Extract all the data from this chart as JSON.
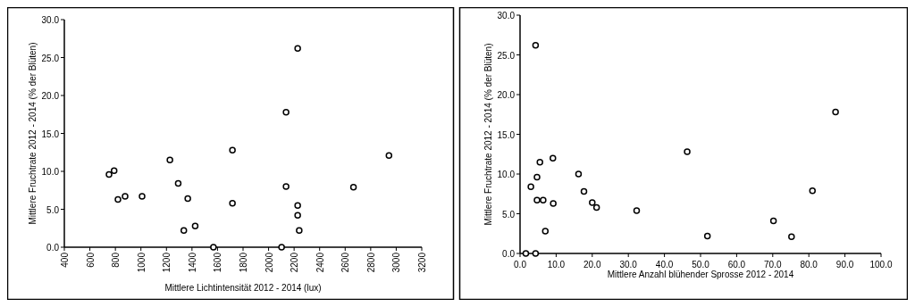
{
  "chart_data": [
    {
      "type": "scatter",
      "xlabel": "Mittlere Lichtintensität 2012 - 2014 (lux)",
      "ylabel": "Mittlere Fruchtrate 2012 - 2014 (% der Blüten)",
      "marker": "circle",
      "xlim": [
        400,
        3200
      ],
      "xticks": [
        400,
        600,
        800,
        1000,
        1200,
        1400,
        1600,
        1800,
        2000,
        2200,
        2400,
        2600,
        2800,
        3000,
        3200
      ],
      "ylim": [
        0,
        30
      ],
      "yticks": [
        {
          "value": 0,
          "label": "0.0"
        },
        {
          "value": 5,
          "label": "5.0"
        },
        {
          "value": 10,
          "label": "10.0"
        },
        {
          "value": 15,
          "label": "15.0"
        },
        {
          "value": 20,
          "label": "20.0"
        },
        {
          "value": 25,
          "label": "25.0"
        },
        {
          "value": 30,
          "label": "30.0"
        }
      ],
      "series": [
        {
          "color": "#000000",
          "x": [
            750,
            790,
            820,
            876,
            1009,
            1227,
            1292,
            1367,
            1336,
            1425,
            1568,
            1717,
            1717,
            2102,
            2137,
            2137,
            2228,
            2228,
            2228,
            2240,
            2665,
            2943
          ],
          "values": [
            9.6,
            10.1,
            6.3,
            6.7,
            6.7,
            11.5,
            8.4,
            6.4,
            2.2,
            2.8,
            0,
            12.8,
            5.8,
            0,
            17.8,
            8.0,
            26.2,
            5.5,
            4.2,
            2.2,
            7.9,
            12.1
          ]
        }
      ]
    },
    {
      "type": "scatter",
      "xlabel": "Mittlere Anzahl blühender Sprosse 2012 - 2014",
      "ylabel": "Mittlere Fruchtrate 2012 - 2014 (% der Blüten)",
      "marker": "circle",
      "xlim": [
        0,
        100
      ],
      "xticks": [
        {
          "value": 0,
          "label": "0.0"
        },
        {
          "value": 10,
          "label": "10.0"
        },
        {
          "value": 20,
          "label": "20.0"
        },
        {
          "value": 30,
          "label": "30.0"
        },
        {
          "value": 40,
          "label": "40.0"
        },
        {
          "value": 50,
          "label": "50.0"
        },
        {
          "value": 60,
          "label": "60.0"
        },
        {
          "value": 70,
          "label": "70.0"
        },
        {
          "value": 80,
          "label": "80.0"
        },
        {
          "value": 90,
          "label": "90.0"
        },
        {
          "value": 100,
          "label": "100.0"
        }
      ],
      "ylim": [
        0,
        30
      ],
      "yticks": [
        {
          "value": 0,
          "label": "0.0"
        },
        {
          "value": 5,
          "label": "5.0"
        },
        {
          "value": 10,
          "label": "10.0"
        },
        {
          "value": 15,
          "label": "15.0"
        },
        {
          "value": 20,
          "label": "20.0"
        },
        {
          "value": 25,
          "label": "25.0"
        },
        {
          "value": 30,
          "label": "30.0"
        }
      ],
      "series": [
        {
          "color": "#000000",
          "x": [
            1.6,
            4.3,
            4.3,
            3.0,
            4.7,
            5.5,
            4.7,
            6.4,
            7.0,
            9.1,
            9.2,
            16.2,
            17.7,
            20.0,
            21.2,
            32.3,
            46.3,
            51.9,
            70.2,
            75.2,
            81.0,
            87.4
          ],
          "values": [
            0,
            0,
            26.2,
            8.4,
            9.6,
            11.5,
            6.7,
            6.7,
            2.8,
            12.0,
            6.3,
            10.0,
            7.8,
            6.4,
            5.8,
            5.4,
            12.8,
            2.2,
            4.1,
            2.1,
            7.9,
            17.8
          ]
        }
      ]
    }
  ]
}
